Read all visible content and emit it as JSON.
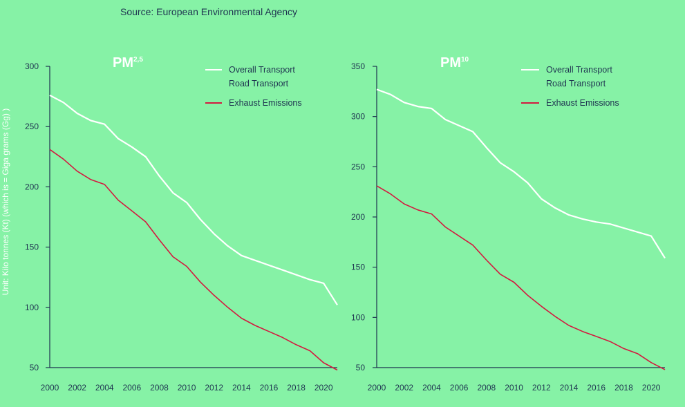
{
  "source": "Source: European Environmental Agency",
  "colors": {
    "background": "#86f2a6",
    "axis": "#1e3450",
    "overall_series": "#ffffff",
    "exhaust_series": "#d3193f",
    "text": "#1e3450"
  },
  "chart_data": [
    {
      "type": "line",
      "title": "PM",
      "title_superscript": "2,5",
      "ylabel": "Unit: Kilo tonnes (Kt) (which is = Giga grams (Gg) )",
      "xlabel": "",
      "xlim": [
        2000,
        2021
      ],
      "ylim": [
        50,
        300
      ],
      "x_ticks": [
        2000,
        2002,
        2004,
        2006,
        2008,
        2010,
        2012,
        2014,
        2016,
        2018,
        2020
      ],
      "y_ticks": [
        50,
        100,
        150,
        200,
        250,
        300
      ],
      "legend_position": "top-right",
      "legend": [
        {
          "label": "Overall Transport",
          "series": "overall"
        },
        {
          "label": "Road Transport",
          "series": "overall"
        },
        {
          "label": "Exhaust Emissions",
          "series": "exhaust"
        }
      ],
      "series": [
        {
          "key": "overall",
          "x": [
            2000,
            2001,
            2002,
            2003,
            2004,
            2005,
            2006,
            2007,
            2008,
            2009,
            2010,
            2011,
            2012,
            2013,
            2014,
            2015,
            2016,
            2017,
            2018,
            2019,
            2020,
            2021
          ],
          "values": [
            276,
            270,
            261,
            255,
            252,
            240,
            233,
            225,
            209,
            195,
            187,
            173,
            161,
            151,
            143,
            139,
            135,
            131,
            127,
            123,
            120,
            102
          ]
        },
        {
          "key": "exhaust",
          "x": [
            2000,
            2001,
            2002,
            2003,
            2004,
            2005,
            2006,
            2007,
            2008,
            2009,
            2010,
            2011,
            2012,
            2013,
            2014,
            2015,
            2016,
            2017,
            2018,
            2019,
            2020,
            2021
          ],
          "values": [
            231,
            223,
            213,
            206,
            202,
            189,
            180,
            171,
            156,
            142,
            134,
            121,
            110,
            100,
            91,
            85,
            80,
            75,
            69,
            64,
            54,
            48
          ]
        }
      ]
    },
    {
      "type": "line",
      "title": "PM",
      "title_superscript": "10",
      "xlabel": "",
      "xlim": [
        2000,
        2021
      ],
      "ylim": [
        50,
        350
      ],
      "x_ticks": [
        2000,
        2002,
        2004,
        2006,
        2008,
        2010,
        2012,
        2014,
        2016,
        2018,
        2020
      ],
      "y_ticks": [
        50,
        100,
        150,
        200,
        250,
        300,
        350
      ],
      "legend_position": "top-right",
      "legend": [
        {
          "label": "Overall Transport",
          "series": "overall"
        },
        {
          "label": "Road Transport",
          "series": "overall"
        },
        {
          "label": "Exhaust Emissions",
          "series": "exhaust"
        }
      ],
      "series": [
        {
          "key": "overall",
          "x": [
            2000,
            2001,
            2002,
            2003,
            2004,
            2005,
            2006,
            2007,
            2008,
            2009,
            2010,
            2011,
            2012,
            2013,
            2014,
            2015,
            2016,
            2017,
            2018,
            2019,
            2020,
            2021
          ],
          "values": [
            327,
            322,
            314,
            310,
            308,
            297,
            291,
            285,
            269,
            254,
            245,
            234,
            218,
            209,
            202,
            198,
            195,
            193,
            189,
            185,
            181,
            159
          ]
        },
        {
          "key": "exhaust",
          "x": [
            2000,
            2001,
            2002,
            2003,
            2004,
            2005,
            2006,
            2007,
            2008,
            2009,
            2010,
            2011,
            2012,
            2013,
            2014,
            2015,
            2016,
            2017,
            2018,
            2019,
            2020,
            2021
          ],
          "values": [
            231,
            223,
            213,
            207,
            203,
            190,
            181,
            172,
            157,
            143,
            135,
            122,
            111,
            101,
            92,
            86,
            81,
            76,
            69,
            64,
            55,
            48
          ]
        }
      ]
    }
  ]
}
